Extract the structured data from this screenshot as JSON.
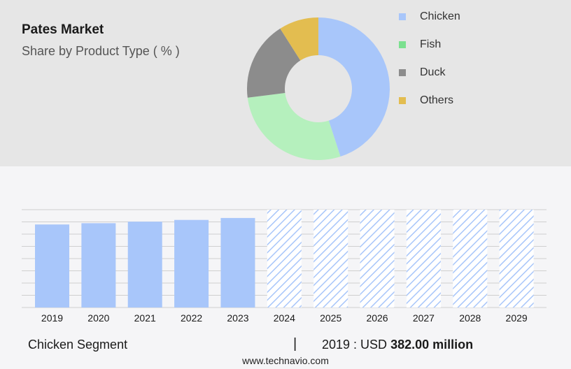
{
  "header": {
    "title": "Pates Market",
    "subtitle": "Share by Product Type ( % )"
  },
  "legend": [
    {
      "label": "Chicken",
      "color": "#a8c6fa"
    },
    {
      "label": "Fish",
      "color": "#7be08f"
    },
    {
      "label": "Duck",
      "color": "#8c8c8c"
    },
    {
      "label": "Others",
      "color": "#e3bd50"
    }
  ],
  "chart_data": [
    {
      "type": "pie",
      "title": "Share by Product Type ( % )",
      "donut": true,
      "categories": [
        "Chicken",
        "Fish",
        "Duck",
        "Others"
      ],
      "values": [
        45,
        28,
        18,
        9
      ],
      "colors": [
        "#a8c6fa",
        "#b5f0bd",
        "#8c8c8c",
        "#e3bd50"
      ]
    },
    {
      "type": "bar",
      "categories": [
        "2019",
        "2020",
        "2021",
        "2022",
        "2023",
        "2024",
        "2025",
        "2026",
        "2027",
        "2028",
        "2029"
      ],
      "values": [
        382,
        388,
        395,
        403,
        412,
        420,
        428,
        436,
        444,
        452,
        460
      ],
      "forecast_from": "2024",
      "bar_color": "#a8c6fa",
      "grid": true
    }
  ],
  "footer": {
    "segment": "Chicken Segment",
    "separator": "|",
    "year_label": "2019 : USD",
    "value": "382.00 million",
    "website": "www.technavio.com"
  }
}
